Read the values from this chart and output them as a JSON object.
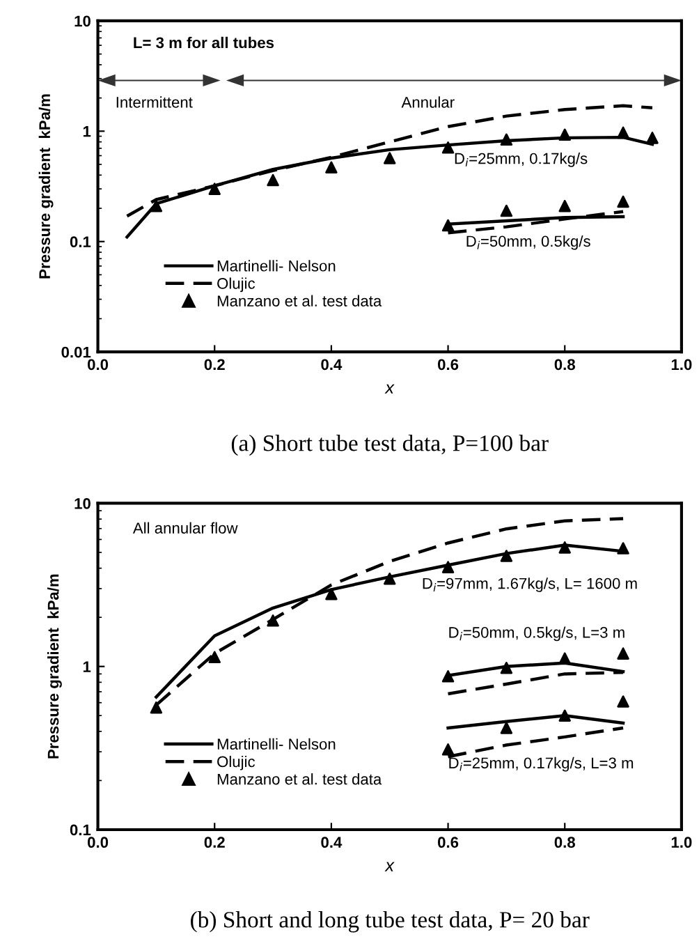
{
  "chart_data": [
    {
      "type": "line",
      "title": "(a) Short tube test data, P=100 bar",
      "xlabel": "x",
      "ylabel": "Pressure gradient  kPa/m",
      "log": "y",
      "xlim": [
        0.0,
        1.0
      ],
      "xticks": [
        {
          "value": 0,
          "label": "0.0"
        },
        {
          "value": 0.2,
          "label": "0.2"
        },
        {
          "value": 0.4,
          "label": "0.4"
        },
        {
          "value": 0.6,
          "label": "0.6"
        },
        {
          "value": 0.8,
          "label": "0.8"
        },
        {
          "value": 1,
          "label": "1.0"
        }
      ],
      "ylim": [
        0.01,
        10
      ],
      "yticks": [
        0.01,
        0.1,
        1,
        10
      ],
      "grid": false,
      "legend": "bottom left",
      "annotations": [
        "L= 3 m for all tubes",
        "Intermittent",
        "Annular",
        "D$_{i}$=25mm, 0.17kg/s",
        "D$_{i}$=50mm, 0.5kg/s"
      ],
      "series": [
        {
          "name": "Martinelli- Nelson",
          "color": "#000000",
          "line_style": "solid",
          "marker": "none",
          "x": [
            0.05,
            0.1,
            0.2,
            0.3,
            0.4,
            0.5,
            0.6,
            0.7,
            0.8,
            0.9,
            0.95
          ],
          "values": [
            0.11,
            0.22,
            0.32,
            0.45,
            0.57,
            0.68,
            0.75,
            0.82,
            0.87,
            0.88,
            0.76
          ]
        },
        {
          "name": "Olujic",
          "color": "#000000",
          "line_style": "dashed",
          "marker": "none",
          "x": [
            0.05,
            0.1,
            0.2,
            0.3,
            0.4,
            0.5,
            0.6,
            0.7,
            0.8,
            0.9,
            0.95
          ],
          "values": [
            0.17,
            0.24,
            0.32,
            0.44,
            0.58,
            0.8,
            1.1,
            1.37,
            1.57,
            1.7,
            1.63
          ]
        },
        {
          "name": "Manzano et al. test data",
          "type": "scatter",
          "color": "#000000",
          "marker": "triangle",
          "x": [
            0.1,
            0.2,
            0.3,
            0.4,
            0.5,
            0.6,
            0.7,
            0.8,
            0.9,
            0.95
          ],
          "values": [
            0.21,
            0.3,
            0.36,
            0.47,
            0.57,
            0.71,
            0.84,
            0.93,
            0.97,
            0.87
          ]
        },
        {
          "color": "#000000",
          "line_style": "solid",
          "marker": "none",
          "x": [
            0.6,
            0.7,
            0.8,
            0.9
          ],
          "values": [
            0.144,
            0.154,
            0.165,
            0.168
          ]
        },
        {
          "color": "#000000",
          "line_style": "dashed",
          "marker": "none",
          "x": [
            0.6,
            0.7,
            0.8,
            0.9
          ],
          "values": [
            0.12,
            0.136,
            0.16,
            0.187
          ]
        },
        {
          "type": "scatter",
          "color": "#000000",
          "marker": "triangle",
          "x": [
            0.6,
            0.7,
            0.8,
            0.9
          ],
          "values": [
            0.14,
            0.19,
            0.21,
            0.23
          ]
        }
      ]
    },
    {
      "type": "line",
      "title": "(b) Short and long tube test data, P= 20 bar",
      "xlabel": "x",
      "ylabel": "Pressure gradient  kPa/m",
      "log": "y",
      "xlim": [
        0.0,
        1.0
      ],
      "xticks": [
        {
          "value": 0,
          "label": "0.0"
        },
        {
          "value": 0.2,
          "label": "0.2"
        },
        {
          "value": 0.4,
          "label": "0.4"
        },
        {
          "value": 0.6,
          "label": "0.6"
        },
        {
          "value": 0.8,
          "label": "0.8"
        },
        {
          "value": 1,
          "label": "1.0"
        }
      ],
      "ylim": [
        0.1,
        10
      ],
      "yticks": [
        0.1,
        1,
        10
      ],
      "grid": false,
      "legend": "bottom left",
      "annotations": [
        "All annular flow",
        "D$_{i}$=97mm, 1.67kg/s, L= 1600 m",
        "D$_{i}$=50mm, 0.5kg/s, L=3 m",
        "D$_{i}$=25mm, 0.17kg/s, L=3 m"
      ],
      "series": [
        {
          "name": "Martinelli- Nelson",
          "color": "#000000",
          "line_style": "solid",
          "marker": "none",
          "x": [
            0.1,
            0.2,
            0.3,
            0.4,
            0.5,
            0.6,
            0.7,
            0.8,
            0.9
          ],
          "values": [
            0.65,
            1.54,
            2.28,
            2.96,
            3.54,
            4.18,
            4.92,
            5.54,
            5.08
          ]
        },
        {
          "name": "Olujic",
          "color": "#000000",
          "line_style": "dashed",
          "marker": "none",
          "x": [
            0.1,
            0.2,
            0.3,
            0.4,
            0.5,
            0.6,
            0.7,
            0.8,
            0.9
          ],
          "values": [
            0.58,
            1.2,
            1.94,
            3.16,
            4.4,
            5.71,
            6.97,
            7.8,
            8.05
          ]
        },
        {
          "name": "Manzano et al. test data",
          "type": "scatter",
          "color": "#000000",
          "marker": "triangle",
          "x": [
            0.1,
            0.2,
            0.3,
            0.4,
            0.5,
            0.6,
            0.7,
            0.8,
            0.9
          ],
          "values": [
            0.56,
            1.14,
            1.91,
            2.78,
            3.45,
            4.06,
            4.76,
            5.36,
            5.3
          ]
        },
        {
          "color": "#000000",
          "line_style": "solid",
          "marker": "none",
          "x": [
            0.6,
            0.7,
            0.8,
            0.9
          ],
          "values": [
            0.88,
            1.0,
            1.05,
            0.93
          ]
        },
        {
          "color": "#000000",
          "line_style": "dashed",
          "marker": "none",
          "x": [
            0.6,
            0.7,
            0.8,
            0.9
          ],
          "values": [
            0.68,
            0.78,
            0.9,
            0.92
          ]
        },
        {
          "type": "scatter",
          "color": "#000000",
          "marker": "triangle",
          "x": [
            0.6,
            0.7,
            0.8,
            0.9
          ],
          "values": [
            0.87,
            0.98,
            1.12,
            1.2
          ]
        },
        {
          "color": "#000000",
          "line_style": "solid",
          "marker": "none",
          "x": [
            0.6,
            0.7,
            0.8,
            0.9
          ],
          "values": [
            0.42,
            0.46,
            0.5,
            0.45
          ]
        },
        {
          "color": "#000000",
          "line_style": "dashed",
          "marker": "none",
          "x": [
            0.6,
            0.7,
            0.8,
            0.9
          ],
          "values": [
            0.28,
            0.33,
            0.37,
            0.42
          ]
        },
        {
          "type": "scatter",
          "color": "#000000",
          "marker": "triangle",
          "x": [
            0.6,
            0.7,
            0.8,
            0.9
          ],
          "values": [
            0.31,
            0.42,
            0.5,
            0.61
          ]
        }
      ]
    }
  ]
}
